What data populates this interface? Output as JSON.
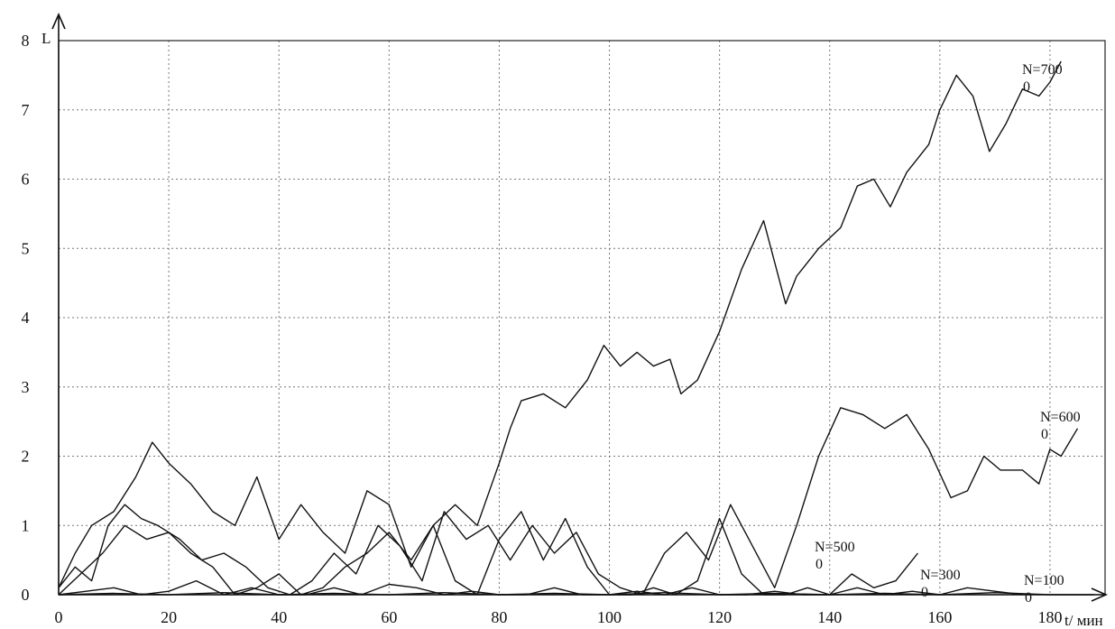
{
  "chart_data": {
    "type": "line",
    "title": "",
    "xlabel": "t/ мин",
    "ylabel": "L",
    "xlim": [
      0,
      190
    ],
    "ylim": [
      0,
      8
    ],
    "xticks": [
      0,
      20,
      40,
      60,
      80,
      100,
      120,
      140,
      160,
      180
    ],
    "yticks": [
      0,
      1,
      2,
      3,
      4,
      5,
      6,
      7,
      8
    ],
    "grid": true,
    "series": [
      {
        "name": "N=700",
        "name_sub": "0",
        "x": [
          0,
          3,
          6,
          10,
          14,
          17,
          20,
          24,
          28,
          32,
          36,
          40,
          44,
          48,
          52,
          56,
          60,
          64,
          68,
          72,
          76,
          80,
          82,
          84,
          88,
          92,
          96,
          99,
          102,
          105,
          108,
          111,
          113,
          116,
          120,
          124,
          128,
          130,
          132,
          134,
          138,
          142,
          145,
          148,
          151,
          154,
          158,
          160,
          163,
          166,
          169,
          172,
          175,
          178,
          180,
          182
        ],
        "y": [
          0.1,
          0.6,
          1.0,
          1.2,
          1.7,
          2.2,
          1.9,
          1.6,
          1.2,
          1.0,
          1.7,
          0.8,
          1.3,
          0.9,
          0.6,
          1.5,
          1.3,
          0.4,
          1.0,
          1.3,
          1.0,
          1.9,
          2.4,
          2.8,
          2.9,
          2.7,
          3.1,
          3.6,
          3.3,
          3.5,
          3.3,
          3.4,
          2.9,
          3.1,
          3.8,
          4.7,
          5.4,
          4.8,
          4.2,
          4.6,
          5.0,
          5.3,
          5.9,
          6.0,
          5.6,
          6.1,
          6.5,
          7.0,
          7.5,
          7.2,
          6.4,
          6.8,
          7.3,
          7.2,
          7.4,
          7.7
        ]
      },
      {
        "name": "N=600",
        "name_sub": "0",
        "x": [
          0,
          3,
          6,
          9,
          12,
          15,
          18,
          22,
          26,
          30,
          34,
          38,
          42,
          46,
          50,
          54,
          58,
          62,
          66,
          70,
          74,
          78,
          82,
          86,
          90,
          94,
          98,
          102,
          106,
          110,
          114,
          118,
          122,
          126,
          130,
          134,
          138,
          142,
          146,
          150,
          154,
          158,
          162,
          165,
          168,
          171,
          175,
          178,
          180,
          182,
          185
        ],
        "y": [
          0.1,
          0.4,
          0.2,
          1.0,
          1.3,
          1.1,
          1.0,
          0.8,
          0.5,
          0.6,
          0.4,
          0.1,
          0.0,
          0.2,
          0.6,
          0.3,
          1.0,
          0.7,
          0.2,
          1.2,
          0.8,
          1.0,
          0.5,
          1.0,
          0.6,
          0.9,
          0.3,
          0.1,
          0.0,
          0.6,
          0.9,
          0.5,
          1.3,
          0.7,
          0.1,
          1.0,
          2.0,
          2.7,
          2.6,
          2.4,
          2.6,
          2.1,
          1.4,
          1.5,
          2.0,
          1.8,
          1.8,
          1.6,
          2.1,
          2.0,
          2.4
        ]
      },
      {
        "name": "N=500",
        "name_sub": "0",
        "x": [
          0,
          4,
          8,
          12,
          16,
          20,
          24,
          28,
          32,
          36,
          40,
          44,
          48,
          52,
          56,
          60,
          64,
          68,
          72,
          76,
          80,
          84,
          88,
          92,
          96,
          100,
          104,
          108,
          112,
          116,
          120,
          124,
          128,
          132,
          136,
          140,
          144,
          148,
          152,
          156
        ],
        "y": [
          0.0,
          0.3,
          0.6,
          1.0,
          0.8,
          0.9,
          0.6,
          0.4,
          0.0,
          0.1,
          0.3,
          0.0,
          0.1,
          0.4,
          0.6,
          0.9,
          0.5,
          1.0,
          0.2,
          0.0,
          0.8,
          1.2,
          0.5,
          1.1,
          0.4,
          0.0,
          0.0,
          0.1,
          0.0,
          0.2,
          1.1,
          0.3,
          0.0,
          0.0,
          0.1,
          0.0,
          0.3,
          0.1,
          0.2,
          0.6
        ]
      },
      {
        "name": "N=300",
        "name_sub": "0",
        "x": [
          0,
          5,
          10,
          15,
          20,
          25,
          30,
          35,
          40,
          45,
          50,
          55,
          60,
          65,
          70,
          75,
          80,
          85,
          90,
          95,
          100,
          105,
          110,
          115,
          120,
          125,
          130,
          135,
          140,
          145,
          150,
          155,
          160,
          165,
          170,
          175
        ],
        "y": [
          0.0,
          0.05,
          0.1,
          0.0,
          0.05,
          0.2,
          0.0,
          0.1,
          0.0,
          0.0,
          0.1,
          0.0,
          0.15,
          0.1,
          0.0,
          0.05,
          0.0,
          0.0,
          0.1,
          0.0,
          0.0,
          0.05,
          0.0,
          0.1,
          0.0,
          0.0,
          0.05,
          0.0,
          0.0,
          0.1,
          0.0,
          0.05,
          0.0,
          0.1,
          0.05,
          0.0
        ]
      },
      {
        "name": "N=100",
        "name_sub": "0",
        "x": [
          0,
          10,
          20,
          30,
          40,
          50,
          60,
          70,
          80,
          90,
          100,
          110,
          120,
          130,
          140,
          150,
          160,
          170,
          180,
          188
        ],
        "y": [
          0.0,
          0.02,
          0.0,
          0.03,
          0.0,
          0.02,
          0.0,
          0.03,
          0.0,
          0.02,
          0.0,
          0.03,
          0.0,
          0.02,
          0.0,
          0.02,
          0.0,
          0.03,
          0.0,
          0.0
        ]
      }
    ]
  }
}
